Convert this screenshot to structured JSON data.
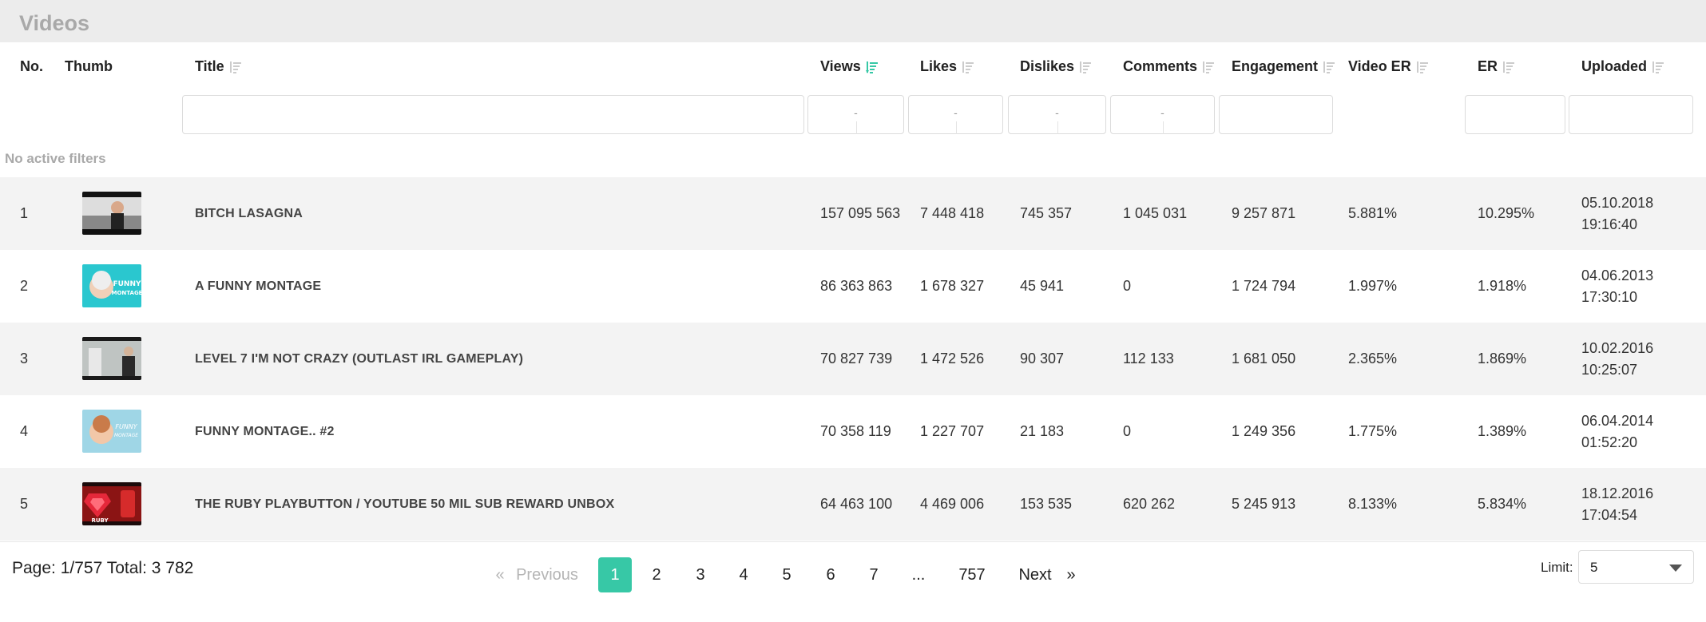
{
  "panel": {
    "title": "Videos"
  },
  "columns": {
    "no": "No.",
    "thumb": "Thumb",
    "title": "Title",
    "views": "Views",
    "likes": "Likes",
    "dislikes": "Dislikes",
    "comments": "Comments",
    "engagement": "Engagement",
    "video_er": "Video ER",
    "er": "ER",
    "uploaded": "Uploaded"
  },
  "filters": {
    "views_placeholder": "-",
    "likes_placeholder": "-",
    "dislikes_placeholder": "-",
    "comments_placeholder": "-"
  },
  "no_filters_text": "No active filters",
  "rows": [
    {
      "no": "1",
      "title": "BITCH LASAGNA",
      "views": "157 095 563",
      "likes": "7 448 418",
      "dislikes": "745 357",
      "comments": "1 045 031",
      "engagement": "9 257 871",
      "video_er": "5.881%",
      "er": "10.295%",
      "date": "05.10.2018",
      "time": "19:16:40"
    },
    {
      "no": "2",
      "title": "A FUNNY MONTAGE",
      "views": "86 363 863",
      "likes": "1 678 327",
      "dislikes": "45 941",
      "comments": "0",
      "engagement": "1 724 794",
      "video_er": "1.997%",
      "er": "1.918%",
      "date": "04.06.2013",
      "time": "17:30:10"
    },
    {
      "no": "3",
      "title": "LEVEL 7 I'M NOT CRAZY (OUTLAST IRL GAMEPLAY)",
      "views": "70 827 739",
      "likes": "1 472 526",
      "dislikes": "90 307",
      "comments": "112 133",
      "engagement": "1 681 050",
      "video_er": "2.365%",
      "er": "1.869%",
      "date": "10.02.2016",
      "time": "10:25:07"
    },
    {
      "no": "4",
      "title": "FUNNY MONTAGE.. #2",
      "views": "70 358 119",
      "likes": "1 227 707",
      "dislikes": "21 183",
      "comments": "0",
      "engagement": "1 249 356",
      "video_er": "1.775%",
      "er": "1.389%",
      "date": "06.04.2014",
      "time": "01:52:20"
    },
    {
      "no": "5",
      "title": "THE RUBY PLAYBUTTON / YOUTUBE 50 MIL SUB REWARD UNBOX",
      "views": "64 463 100",
      "likes": "4 469 006",
      "dislikes": "153 535",
      "comments": "620 262",
      "engagement": "5 245 913",
      "video_er": "8.133%",
      "er": "5.834%",
      "date": "18.12.2016",
      "time": "17:04:54"
    }
  ],
  "thumb_texts": {
    "t2": "FUNNY MONTAGE",
    "t4": "FUNNY MONTAGE",
    "t5": "RUBY"
  },
  "footer": {
    "page_info": "Page: 1/757 Total: 3 782",
    "prev_arrow": "«",
    "prev": "Previous",
    "pages": [
      "1",
      "2",
      "3",
      "4",
      "5",
      "6",
      "7",
      "...",
      "757"
    ],
    "next": "Next",
    "next_arrow": "»",
    "limit_label": "Limit:",
    "limit_value": "5"
  },
  "colors": {
    "accent": "#37c8a6",
    "header_bg": "#ececec",
    "row_alt": "#f3f3f3"
  }
}
